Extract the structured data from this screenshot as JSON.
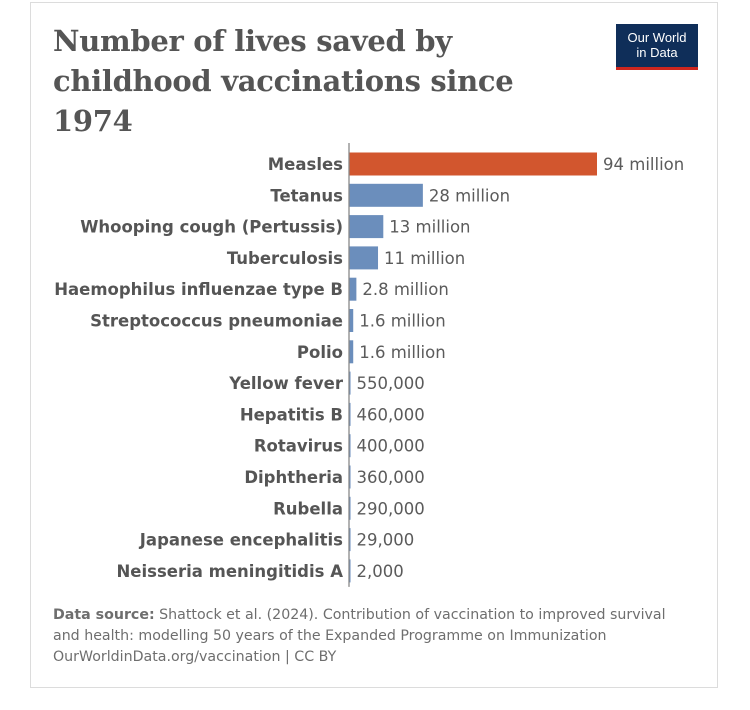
{
  "title": "Number of lives saved by childhood vaccinations since 1974",
  "logo": {
    "line1": "Our World",
    "line2": "in Data",
    "bg_color": "#0f2e59",
    "accent_color": "#ce261e"
  },
  "chart_data": {
    "type": "bar",
    "orientation": "horizontal",
    "title": "Number of lives saved by childhood vaccinations since 1974",
    "xlabel": "",
    "ylabel": "",
    "grid": false,
    "categories": [
      "Measles",
      "Tetanus",
      "Whooping cough (Pertussis)",
      "Tuberculosis",
      "Haemophilus influenzae type B",
      "Streptococcus pneumoniae",
      "Polio",
      "Yellow fever",
      "Hepatitis B",
      "Rotavirus",
      "Diphtheria",
      "Rubella",
      "Japanese encephalitis",
      "Neisseria meningitidis A"
    ],
    "values": [
      94000000,
      28000000,
      13000000,
      11000000,
      2800000,
      1600000,
      1600000,
      550000,
      460000,
      400000,
      360000,
      290000,
      29000,
      2000
    ],
    "value_labels": [
      "94 million",
      "28 million",
      "13 million",
      "11 million",
      "2.8 million",
      "1.6 million",
      "1.6 million",
      "550,000",
      "460,000",
      "400,000",
      "360,000",
      "290,000",
      "29,000",
      "2,000"
    ],
    "xlim": [
      0,
      94000000
    ],
    "highlight_color": "#d2562e",
    "bar_color": "#6b8ebc",
    "highlight_index": 0
  },
  "footer": {
    "source_label": "Data source:",
    "source_text": "Shattock et al. (2024). Contribution of vaccination to improved survival and health: modelling 50 years of the Expanded Programme on Immunization",
    "url_line": "OurWorldinData.org/vaccination | CC BY"
  }
}
